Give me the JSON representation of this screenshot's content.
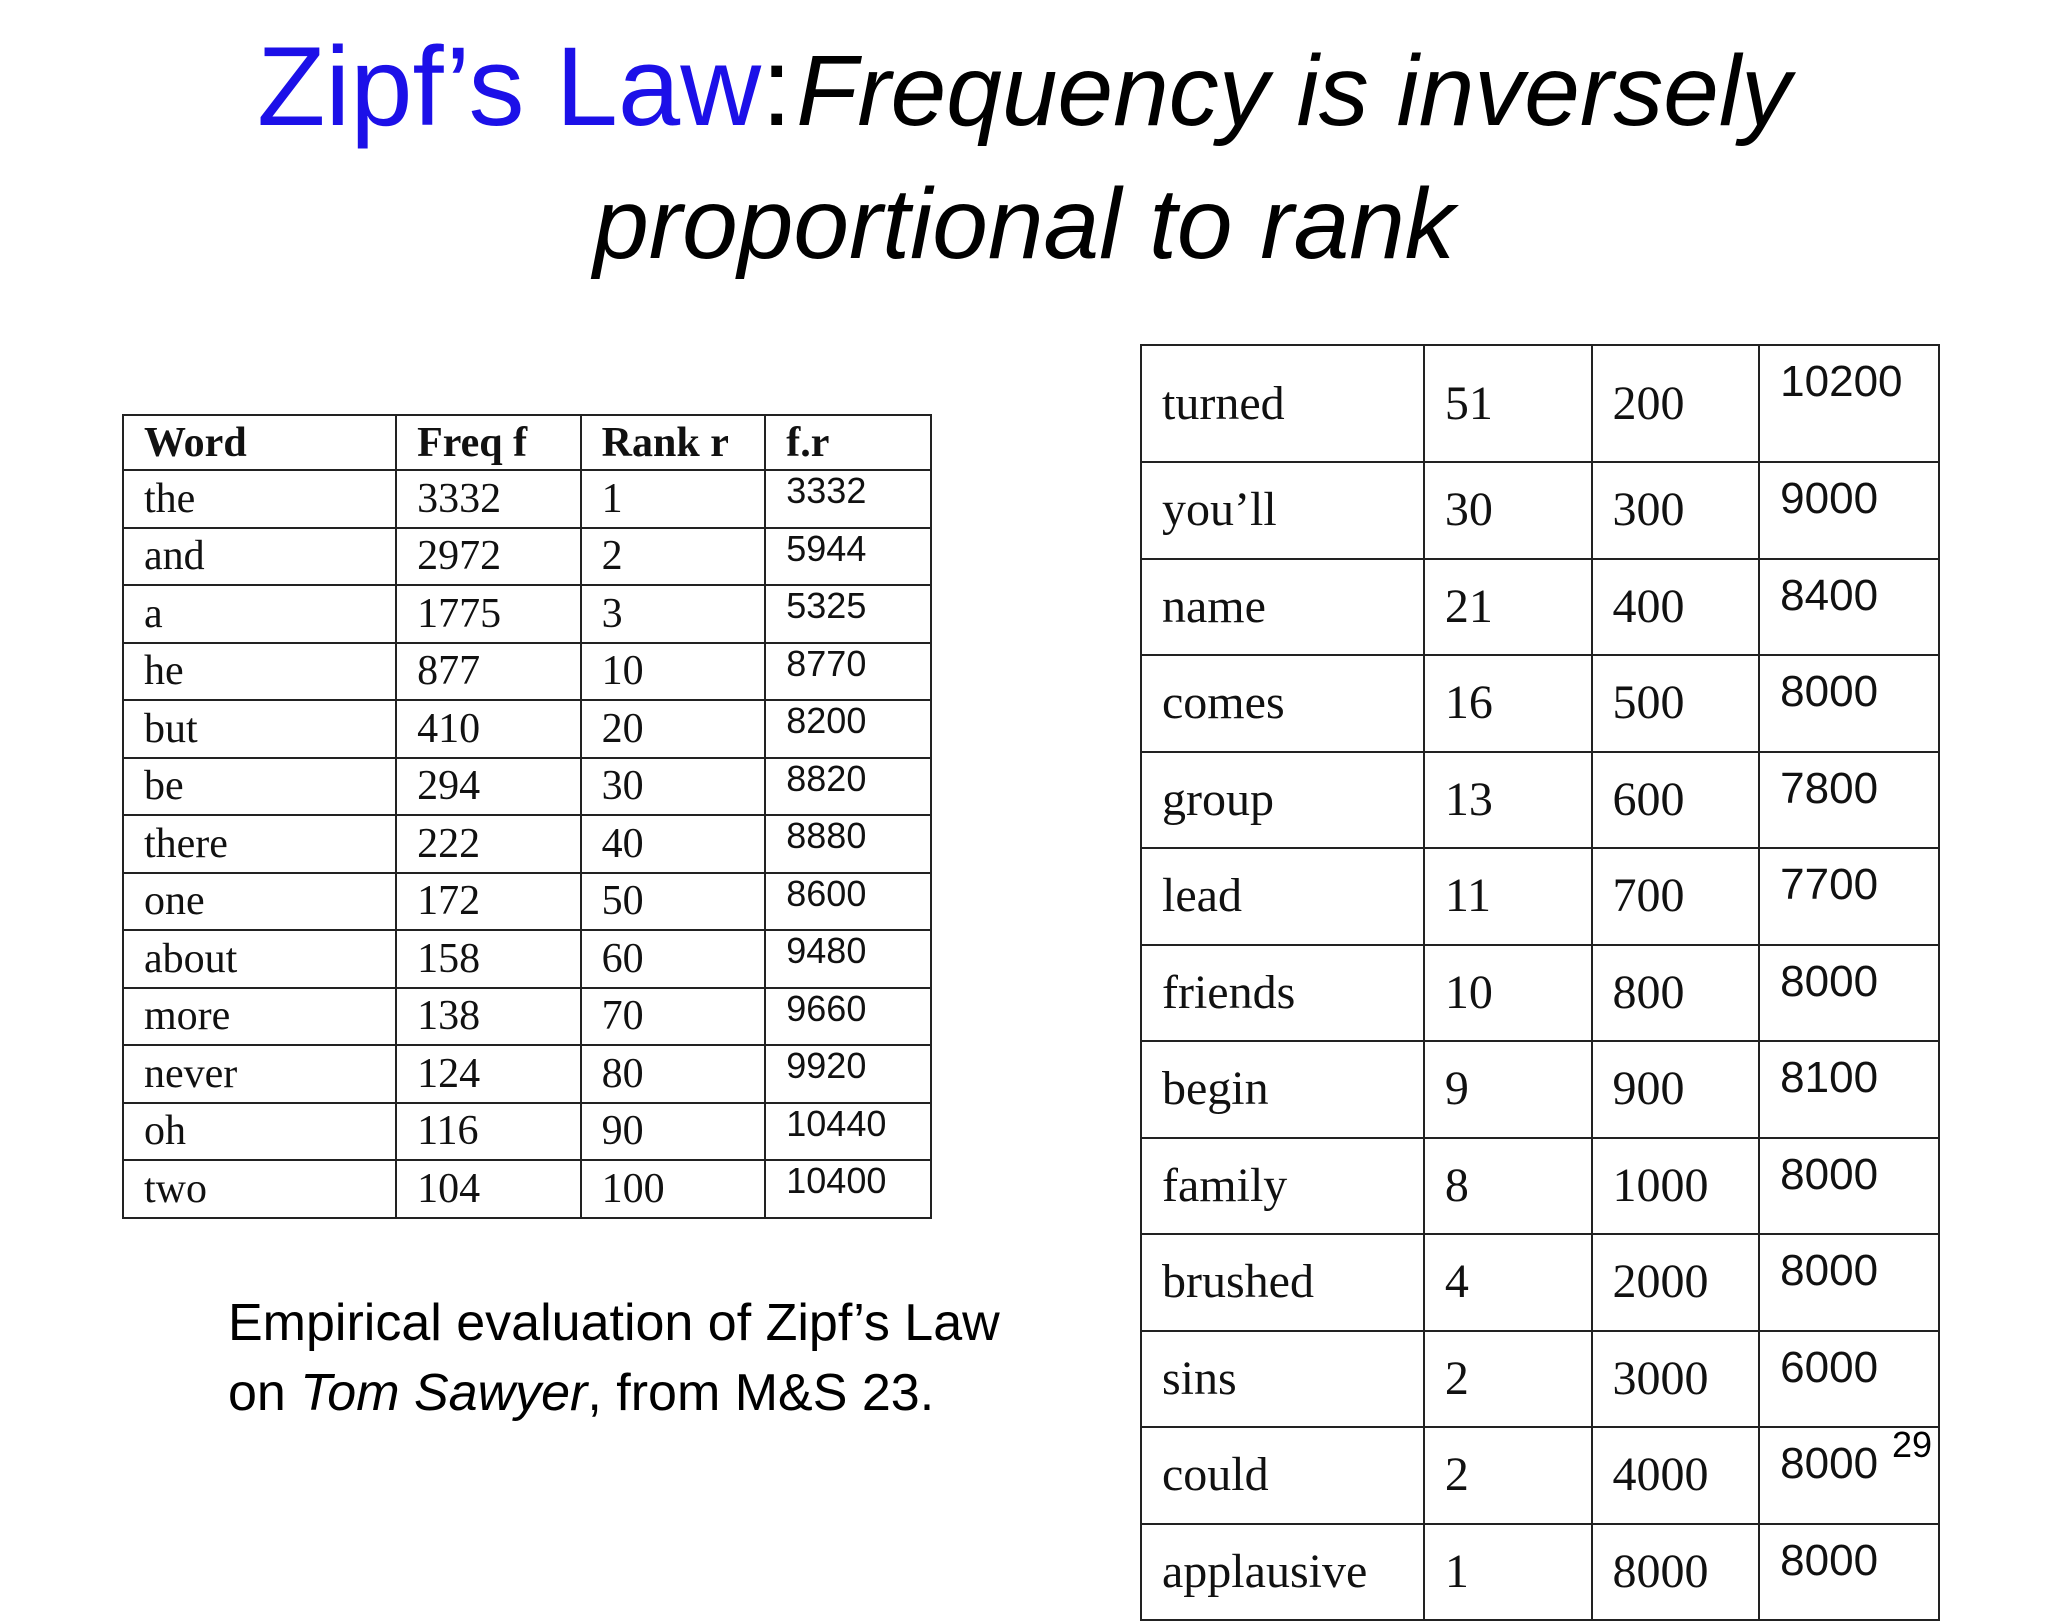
{
  "title": {
    "main": "Zipf’s Law",
    "colon": ":",
    "subtitle_line1": "Frequency is inversely",
    "subtitle_line2": "proportional to rank"
  },
  "left_table": {
    "headers": [
      "Word",
      "Freq f",
      "Rank r",
      "f.r"
    ],
    "rows": [
      [
        "the",
        "3332",
        "1",
        "3332"
      ],
      [
        "and",
        "2972",
        "2",
        "5944"
      ],
      [
        "a",
        "1775",
        "3",
        "5325"
      ],
      [
        "he",
        "877",
        "10",
        "8770"
      ],
      [
        "but",
        "410",
        "20",
        "8200"
      ],
      [
        "be",
        "294",
        "30",
        "8820"
      ],
      [
        "there",
        "222",
        "40",
        "8880"
      ],
      [
        "one",
        "172",
        "50",
        "8600"
      ],
      [
        "about",
        "158",
        "60",
        "9480"
      ],
      [
        "more",
        "138",
        "70",
        "9660"
      ],
      [
        "never",
        "124",
        "80",
        "9920"
      ],
      [
        "oh",
        "116",
        "90",
        "10440"
      ],
      [
        "two",
        "104",
        "100",
        "10400"
      ]
    ]
  },
  "right_table": {
    "rows": [
      [
        "turned",
        "51",
        "200",
        "10200"
      ],
      [
        "you’ll",
        "30",
        "300",
        "9000"
      ],
      [
        "name",
        "21",
        "400",
        "8400"
      ],
      [
        "comes",
        "16",
        "500",
        "8000"
      ],
      [
        "group",
        "13",
        "600",
        "7800"
      ],
      [
        "lead",
        "11",
        "700",
        "7700"
      ],
      [
        "friends",
        "10",
        "800",
        "8000"
      ],
      [
        "begin",
        "9",
        "900",
        "8100"
      ],
      [
        "family",
        "8",
        "1000",
        "8000"
      ],
      [
        "brushed",
        "4",
        "2000",
        "8000"
      ],
      [
        "sins",
        "2",
        "3000",
        "6000"
      ],
      [
        "could",
        "2",
        "4000",
        "8000"
      ],
      [
        "applausive",
        "1",
        "8000",
        "8000"
      ]
    ]
  },
  "caption": {
    "line1": "Empirical evaluation of Zipf’s Law",
    "line2_prefix": "on ",
    "line2_italic": "Tom Sawyer",
    "line2_suffix": ", from M&S 23."
  },
  "page_number": "29",
  "colors": {
    "title_blue": "#1c10e8",
    "text": "#000000",
    "border": "#222222"
  }
}
